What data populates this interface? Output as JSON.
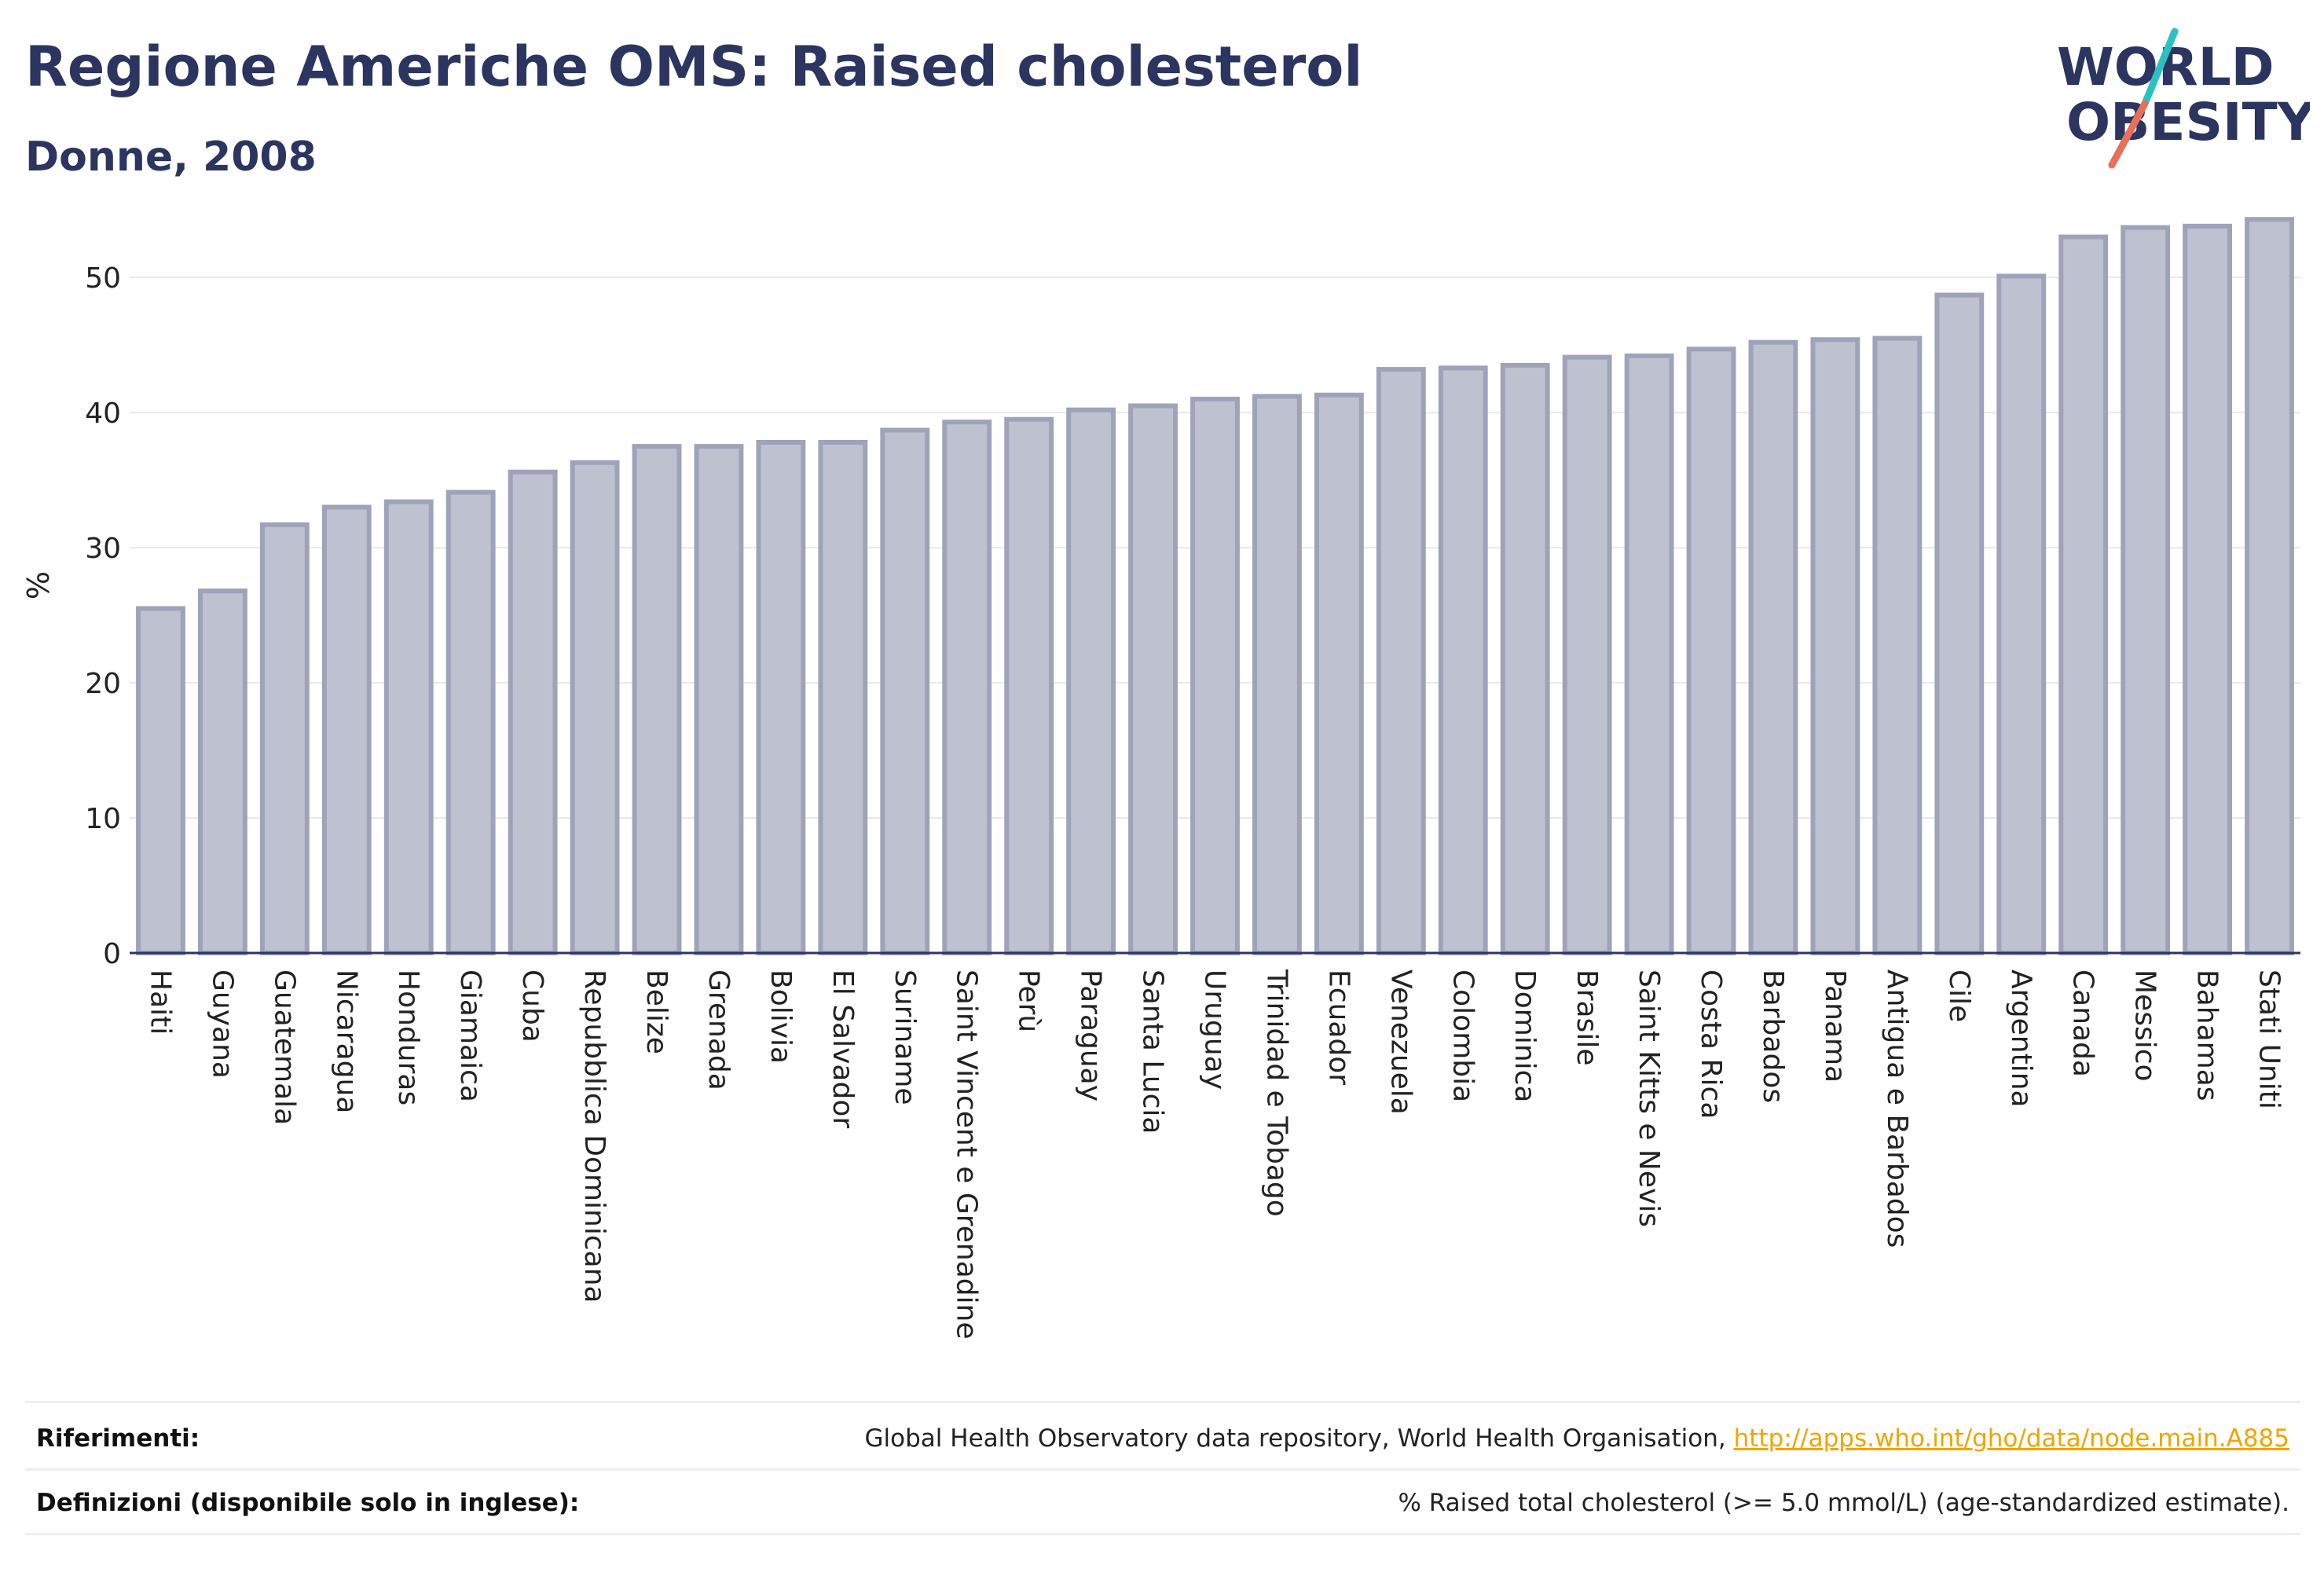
{
  "title": "Regione Americhe OMS: Raised cholesterol",
  "subtitle": "Donne, 2008",
  "logo": {
    "line1": "WORLD",
    "line2": "OBESITY"
  },
  "colors": {
    "bar_fill": "#bec1cf",
    "bar_stroke": "#9ea3ba",
    "text_dark": "#2b3560",
    "logo_teal": "#2cc1c1",
    "logo_coral": "#e8705a",
    "link": "#f0a500"
  },
  "chart_data": {
    "type": "bar",
    "ylabel": "%",
    "xlabel": "",
    "ylim": [
      0,
      56
    ],
    "yticks": [
      0,
      10,
      20,
      30,
      40,
      50
    ],
    "grid": true,
    "categories": [
      "Haiti",
      "Guyana",
      "Guatemala",
      "Nicaragua",
      "Honduras",
      "Giamaica",
      "Cuba",
      "Repubblica Dominicana",
      "Belize",
      "Grenada",
      "Bolivia",
      "El Salvador",
      "Suriname",
      "Saint Vincent e Grenadine",
      "Perù",
      "Paraguay",
      "Santa Lucia",
      "Uruguay",
      "Trinidad e Tobago",
      "Ecuador",
      "Venezuela",
      "Colombia",
      "Dominica",
      "Brasile",
      "Saint Kitts e Nevis",
      "Costa Rica",
      "Barbados",
      "Panama",
      "Antigua e Barbados",
      "Cile",
      "Argentina",
      "Canada",
      "Messico",
      "Bahamas",
      "Stati Uniti"
    ],
    "values": [
      25.5,
      26.8,
      31.7,
      33.0,
      33.4,
      34.1,
      35.6,
      36.3,
      37.5,
      37.5,
      37.8,
      37.8,
      38.7,
      39.3,
      39.5,
      40.2,
      40.5,
      41.0,
      41.2,
      41.3,
      43.2,
      43.3,
      43.5,
      44.1,
      44.2,
      44.7,
      45.2,
      45.4,
      45.5,
      48.7,
      50.1,
      53.0,
      53.7,
      53.8,
      54.3
    ]
  },
  "footer": {
    "references_label": "Riferimenti:",
    "references_text": "Global Health Observatory data repository, World Health Organisation, ",
    "references_link": "http://apps.who.int/gho/data/node.main.A885",
    "definitions_label": "Definizioni (disponibile solo in inglese):",
    "definitions_text": "% Raised total cholesterol (>= 5.0 mmol/L) (age-standardized estimate)."
  }
}
